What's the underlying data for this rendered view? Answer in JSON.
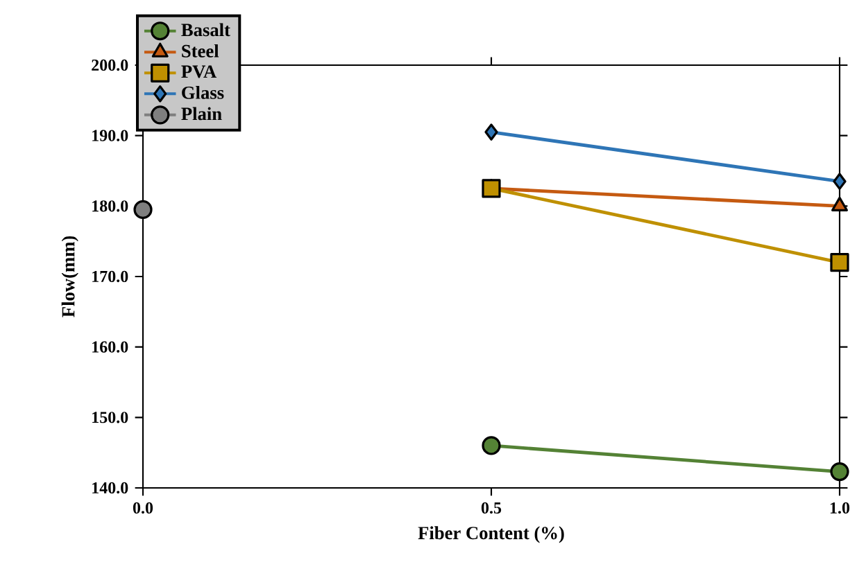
{
  "chart_data": {
    "type": "line",
    "xlabel": "Fiber Content (%)",
    "ylabel": "Flow(mm)",
    "xlim": [
      0,
      1
    ],
    "ylim": [
      140,
      200
    ],
    "xticks": [
      {
        "value": 0,
        "label": "0.0"
      },
      {
        "value": 0.5,
        "label": "0.5"
      },
      {
        "value": 1,
        "label": "1.0"
      }
    ],
    "yticks": [
      {
        "value": 140,
        "label": "140.0"
      },
      {
        "value": 150,
        "label": "150.0"
      },
      {
        "value": 160,
        "label": "160.0"
      },
      {
        "value": 170,
        "label": "170.0"
      },
      {
        "value": 180,
        "label": "180.0"
      },
      {
        "value": 190,
        "label": "190.0"
      },
      {
        "value": 200,
        "label": "200.0"
      }
    ],
    "grid": false,
    "legend": "top left",
    "series": [
      {
        "name": "Basalt",
        "color": "#548235",
        "marker": "circle",
        "x": [
          0.5,
          1
        ],
        "values": [
          146,
          142.3
        ]
      },
      {
        "name": "Steel",
        "color": "#c55a11",
        "marker": "triangle",
        "x": [
          0.5,
          1
        ],
        "values": [
          182.5,
          180
        ]
      },
      {
        "name": "PVA",
        "color": "#bf9000",
        "marker": "square",
        "x": [
          0.5,
          1
        ],
        "values": [
          182.5,
          172
        ]
      },
      {
        "name": "Glass",
        "color": "#2e75b6",
        "marker": "diamond",
        "x": [
          0.5,
          1
        ],
        "values": [
          190.5,
          183.5
        ]
      },
      {
        "name": "Plain",
        "color": "#7f7f7f",
        "marker": "circle",
        "x": [
          0
        ],
        "values": [
          179.5
        ]
      }
    ]
  }
}
